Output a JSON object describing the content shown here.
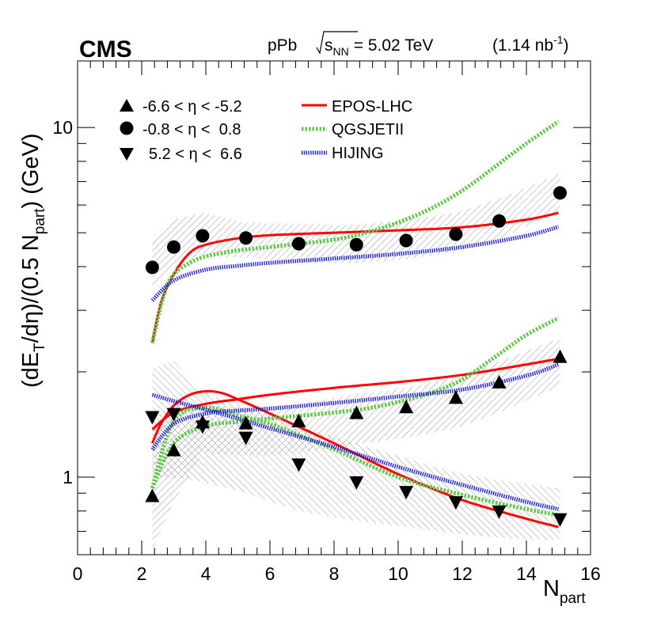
{
  "chart_data": {
    "type": "scatter",
    "experiment": "CMS",
    "collision": "pPb",
    "energy_sqrt": "s",
    "energy_sub": "NN",
    "energy_value": "= 5.02 TeV",
    "lumi_open": "(1.14 nb",
    "lumi_exp": "-1",
    "lumi_close": ")",
    "ylabel": {
      "p1": "(dE",
      "s1": "T",
      "p2": "/dη)/(0.5 N",
      "s2": "part",
      "p3": ") (GeV)"
    },
    "xlabel": {
      "main": "N",
      "sub": "part"
    },
    "xlim": [
      0,
      16
    ],
    "ylim": [
      0.6,
      15.5
    ],
    "yscale": "log",
    "x_ticks": [
      "0",
      "2",
      "4",
      "6",
      "8",
      "10",
      "12",
      "14",
      "16"
    ],
    "y_tick_labels": [
      {
        "value": 1,
        "label": "1"
      },
      {
        "value": 10,
        "label": "10"
      }
    ],
    "legend_data": [
      {
        "name": "-6.6 < η < -5.2",
        "marker": "triangle-up"
      },
      {
        "name": "-0.8 < η <  0.8",
        "marker": "circle"
      },
      {
        "name": "5.2 < η <  6.6",
        "marker": "triangle-down"
      }
    ],
    "legend_models": [
      {
        "name": "EPOS-LHC",
        "color": "#ff0000",
        "style": "solid"
      },
      {
        "name": "QGSJETII",
        "color": "#5fc948",
        "style": "dotted"
      },
      {
        "name": "HIJING",
        "color": "#2020d0",
        "style": "dotted"
      }
    ],
    "series": [
      {
        "name": "-6.6 < η < -5.2",
        "marker": "triangle-up",
        "x": [
          2.33,
          3.0,
          3.9,
          5.25,
          6.9,
          8.7,
          10.25,
          11.8,
          13.15,
          15.05
        ],
        "y": [
          0.88,
          1.19,
          1.43,
          1.42,
          1.44,
          1.52,
          1.58,
          1.68,
          1.86,
          2.2
        ],
        "band_low": [
          0.62,
          0.85,
          1.17,
          1.15,
          1.17,
          1.24,
          1.3,
          1.38,
          1.53,
          1.82
        ],
        "band_high": [
          1.35,
          1.65,
          1.6,
          1.58,
          1.62,
          1.73,
          1.8,
          1.93,
          2.14,
          2.5
        ]
      },
      {
        "name": "-0.8 < η <  0.8",
        "marker": "circle",
        "x": [
          2.33,
          3.0,
          3.9,
          5.25,
          6.9,
          8.7,
          10.25,
          11.8,
          13.15,
          15.05
        ],
        "y": [
          3.98,
          4.55,
          4.9,
          4.83,
          4.65,
          4.62,
          4.75,
          4.95,
          5.4,
          6.5
        ],
        "band_low": [
          3.5,
          3.95,
          4.25,
          4.25,
          4.1,
          4.1,
          4.2,
          4.4,
          4.8,
          5.75
        ],
        "band_high": [
          4.7,
          5.45,
          5.7,
          5.35,
          5.3,
          5.25,
          5.45,
          5.7,
          6.25,
          7.4
        ]
      },
      {
        "name": "5.2 < η <  6.6",
        "marker": "triangle-down",
        "x": [
          2.33,
          3.0,
          3.9,
          5.25,
          6.9,
          8.7,
          10.25,
          11.8,
          13.15,
          15.05
        ],
        "y": [
          1.49,
          1.52,
          1.4,
          1.3,
          1.09,
          0.97,
          0.91,
          0.85,
          0.8,
          0.76
        ],
        "band_low": [
          1.0,
          1.0,
          0.97,
          0.9,
          0.8,
          0.75,
          0.72,
          0.69,
          0.67,
          0.66
        ],
        "band_high": [
          2.05,
          2.15,
          1.75,
          1.58,
          1.4,
          1.25,
          1.13,
          1.03,
          0.98,
          0.93
        ]
      }
    ],
    "models": [
      {
        "name": "EPOS-LHC (-0.8 < η < 0.8)",
        "color": "#ff0000",
        "style": "solid",
        "x": [
          2.33,
          2.6,
          3.0,
          3.5,
          4.0,
          5.0,
          6.0,
          8.0,
          10.0,
          12.0,
          14.0,
          15.0
        ],
        "y": [
          2.42,
          3.15,
          3.8,
          4.38,
          4.62,
          4.82,
          4.92,
          5.0,
          5.08,
          5.18,
          5.45,
          5.7
        ]
      },
      {
        "name": "EPOS-LHC (-6.6 < η < -5.2)",
        "color": "#ff0000",
        "style": "solid",
        "x": [
          2.33,
          3.0,
          4.0,
          5.0,
          6.0,
          8.0,
          10.0,
          12.0,
          14.0,
          15.0
        ],
        "y": [
          1.37,
          1.53,
          1.62,
          1.67,
          1.72,
          1.8,
          1.87,
          1.96,
          2.1,
          2.18
        ]
      },
      {
        "name": "EPOS-LHC (5.2 < η < 6.6)",
        "color": "#ff0000",
        "style": "solid",
        "x": [
          2.33,
          2.6,
          3.0,
          3.5,
          4.0,
          4.5,
          5.0,
          6.0,
          8.0,
          10.0,
          12.0,
          14.0,
          15.0
        ],
        "y": [
          1.25,
          1.42,
          1.6,
          1.72,
          1.76,
          1.74,
          1.67,
          1.52,
          1.25,
          1.02,
          0.86,
          0.76,
          0.72
        ]
      },
      {
        "name": "QGSJETII (-0.8 < η < 0.8)",
        "color": "#5fc948",
        "style": "dotted",
        "x": [
          2.33,
          2.7,
          3.0,
          3.5,
          4.0,
          5.0,
          6.0,
          8.0,
          9.0,
          10.0,
          11.0,
          12.0,
          13.0,
          14.0,
          15.0
        ],
        "y": [
          2.42,
          3.35,
          3.8,
          4.1,
          4.28,
          4.45,
          4.55,
          4.78,
          5.0,
          5.35,
          5.85,
          6.6,
          7.7,
          9.0,
          10.4
        ]
      },
      {
        "name": "QGSJETII (-6.6 < η < -5.2)",
        "color": "#5fc948",
        "style": "dotted",
        "x": [
          2.33,
          3.0,
          4.0,
          5.0,
          6.0,
          7.0,
          8.0,
          9.0,
          10.0,
          11.0,
          12.0,
          13.0,
          14.0,
          15.0
        ],
        "y": [
          0.93,
          1.25,
          1.4,
          1.44,
          1.47,
          1.5,
          1.53,
          1.57,
          1.64,
          1.74,
          1.9,
          2.2,
          2.55,
          2.85
        ]
      },
      {
        "name": "QGSJETII (5.2 < η < 6.6)",
        "color": "#5fc948",
        "style": "dotted",
        "x": [
          2.33,
          3.0,
          4.0,
          5.0,
          6.0,
          8.0,
          10.0,
          12.0,
          14.0,
          15.0
        ],
        "y": [
          0.93,
          1.45,
          1.58,
          1.5,
          1.42,
          1.2,
          1.0,
          0.89,
          0.81,
          0.78
        ]
      },
      {
        "name": "HIJING (-0.8 < η < 0.8)",
        "color": "#2020d0",
        "style": "dotted",
        "x": [
          2.33,
          3.0,
          4.0,
          5.0,
          6.0,
          8.0,
          10.0,
          12.0,
          14.0,
          15.0
        ],
        "y": [
          3.2,
          3.65,
          3.92,
          4.02,
          4.1,
          4.22,
          4.35,
          4.55,
          4.9,
          5.2
        ]
      },
      {
        "name": "HIJING (-6.6 < η < -5.2)",
        "color": "#2020d0",
        "style": "dotted",
        "x": [
          2.33,
          3.0,
          4.0,
          5.0,
          6.0,
          8.0,
          10.0,
          12.0,
          14.0,
          15.0
        ],
        "y": [
          1.2,
          1.42,
          1.52,
          1.55,
          1.57,
          1.63,
          1.7,
          1.78,
          1.95,
          2.1
        ]
      },
      {
        "name": "HIJING (5.2 < η < 6.6)",
        "color": "#2020d0",
        "style": "dotted",
        "x": [
          2.33,
          3.0,
          4.0,
          5.0,
          6.0,
          8.0,
          10.0,
          12.0,
          14.0,
          15.0
        ],
        "y": [
          1.72,
          1.65,
          1.56,
          1.47,
          1.38,
          1.22,
          1.07,
          0.95,
          0.85,
          0.81
        ]
      }
    ]
  }
}
